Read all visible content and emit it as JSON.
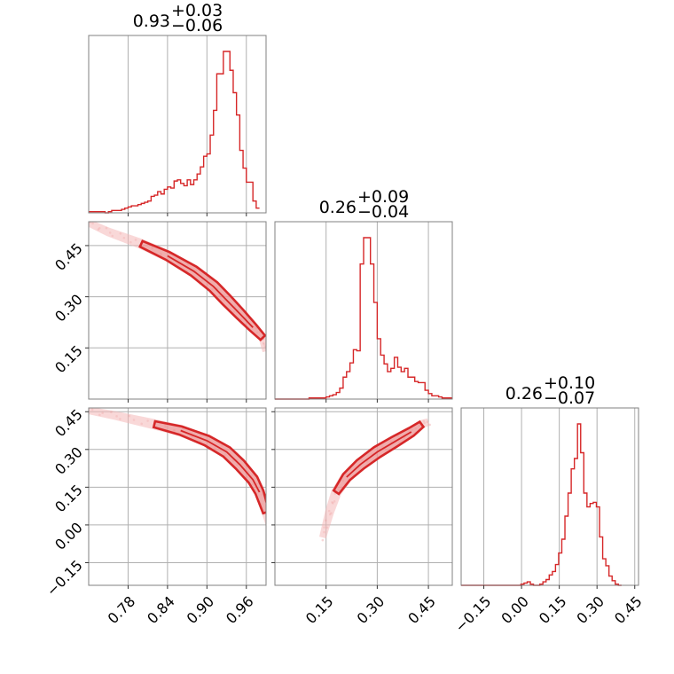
{
  "chart_data": {
    "type": "corner",
    "colors": {
      "series": "#d62728",
      "fill_light": "#f4b8b8",
      "fill_mid": "#ea8a8a",
      "grid": "#b0b0b0",
      "frame": "#808080"
    },
    "grid": true,
    "parameters": [
      {
        "title_value": "0.93",
        "title_plus": "+0.03",
        "title_minus": "−0.06",
        "range": [
          0.72,
          0.99
        ],
        "ticks": [
          0.78,
          0.84,
          0.9,
          0.96
        ],
        "tick_labels": [
          "0.78",
          "0.84",
          "0.90",
          "0.96"
        ]
      },
      {
        "title_value": "0.26",
        "title_plus": "+0.09",
        "title_minus": "−0.04",
        "range": [
          0.0,
          0.52
        ],
        "ticks": [
          0.15,
          0.3,
          0.45
        ],
        "tick_labels": [
          "0.15",
          "0.30",
          "0.45"
        ]
      },
      {
        "title_value": "0.26",
        "title_plus": "+0.10",
        "title_minus": "−0.07",
        "range": [
          -0.24,
          0.465
        ],
        "ticks": [
          -0.15,
          0.0,
          0.15,
          0.3,
          0.45
        ],
        "tick_labels": [
          "−0.15",
          "0.00",
          "0.15",
          "0.30",
          "0.45"
        ]
      }
    ],
    "histograms": [
      {
        "edges_start": 0.72,
        "bin_width": 0.005,
        "counts": [
          1,
          1,
          1,
          1,
          1,
          0,
          1,
          2,
          2,
          2,
          3,
          4,
          5,
          6,
          6,
          7,
          8,
          9,
          10,
          14,
          15,
          18,
          16,
          20,
          22,
          21,
          27,
          28,
          25,
          23,
          28,
          24,
          28,
          33,
          39,
          48,
          50,
          66,
          87,
          118,
          118,
          137,
          137,
          121,
          102,
          83,
          53,
          38,
          26,
          26,
          10,
          4
        ]
      },
      {
        "edges_start": 0.0,
        "bin_width": 0.01,
        "counts": [
          0,
          0,
          0,
          0,
          0,
          0,
          0,
          0,
          0,
          0,
          1,
          1,
          1,
          1,
          1,
          2,
          3,
          4,
          6,
          10,
          20,
          25,
          33,
          45,
          44,
          123,
          147,
          147,
          123,
          88,
          55,
          40,
          32,
          25,
          28,
          38,
          29,
          25,
          28,
          20,
          20,
          16,
          15,
          15,
          8,
          5,
          3,
          3,
          2,
          1,
          1,
          1
        ]
      },
      {
        "edges_start": -0.24,
        "bin_width": 0.0125,
        "counts": [
          0,
          0,
          0,
          0,
          0,
          0,
          0,
          0,
          0,
          0,
          0,
          0,
          0,
          0,
          0,
          0,
          0,
          0,
          0,
          1,
          2,
          3,
          1,
          0,
          0,
          1,
          3,
          5,
          9,
          12,
          18,
          28,
          40,
          60,
          80,
          101,
          110,
          140,
          115,
          80,
          68,
          71,
          72,
          68,
          42,
          23,
          17,
          8,
          4,
          1,
          0
        ]
      }
    ],
    "scatter_pairs": [
      {
        "x_param": 0,
        "y_param": 1,
        "ridge": [
          [
            0.716,
            0.52
          ],
          [
            0.75,
            0.49
          ],
          [
            0.8,
            0.455
          ],
          [
            0.84,
            0.42
          ],
          [
            0.88,
            0.375
          ],
          [
            0.91,
            0.33
          ],
          [
            0.93,
            0.29
          ],
          [
            0.95,
            0.25
          ],
          [
            0.97,
            0.21
          ],
          [
            0.985,
            0.18
          ],
          [
            0.99,
            0.14
          ]
        ]
      },
      {
        "x_param": 0,
        "y_param": 2,
        "ridge": [
          [
            0.71,
            0.46
          ],
          [
            0.76,
            0.435
          ],
          [
            0.82,
            0.4
          ],
          [
            0.86,
            0.375
          ],
          [
            0.9,
            0.335
          ],
          [
            0.93,
            0.29
          ],
          [
            0.95,
            0.24
          ],
          [
            0.97,
            0.18
          ],
          [
            0.98,
            0.13
          ],
          [
            0.99,
            0.05
          ],
          [
            0.995,
            0.0
          ]
        ]
      },
      {
        "x_param": 1,
        "y_param": 2,
        "ridge": [
          [
            0.14,
            -0.05
          ],
          [
            0.16,
            0.05
          ],
          [
            0.18,
            0.13
          ],
          [
            0.21,
            0.19
          ],
          [
            0.25,
            0.24
          ],
          [
            0.3,
            0.29
          ],
          [
            0.35,
            0.33
          ],
          [
            0.4,
            0.37
          ],
          [
            0.43,
            0.4
          ],
          [
            0.45,
            0.41
          ]
        ]
      }
    ]
  }
}
